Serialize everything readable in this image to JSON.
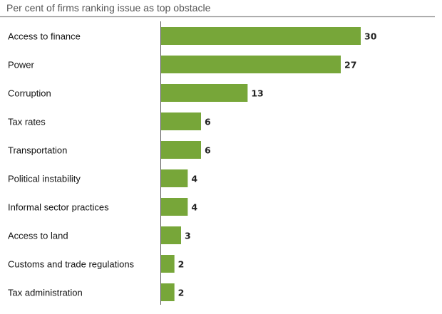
{
  "chart_data": {
    "type": "bar",
    "orientation": "horizontal",
    "subtitle": "Per cent of firms ranking issue as top obstacle",
    "categories": [
      "Access to finance",
      "Power",
      "Corruption",
      "Tax rates",
      "Transportation",
      "Political instability",
      "Informal sector practices",
      "Access to land",
      "Customs and trade regulations",
      "Tax administration"
    ],
    "values": [
      30,
      27,
      13,
      6,
      6,
      4,
      4,
      3,
      2,
      2
    ],
    "value_labels": [
      "30",
      "27",
      "13",
      "6",
      "6",
      "4",
      "4",
      "3",
      "2",
      "2"
    ],
    "xlim": [
      0,
      30
    ],
    "grid": false,
    "bar_color": "#77a639",
    "legend": "none"
  }
}
